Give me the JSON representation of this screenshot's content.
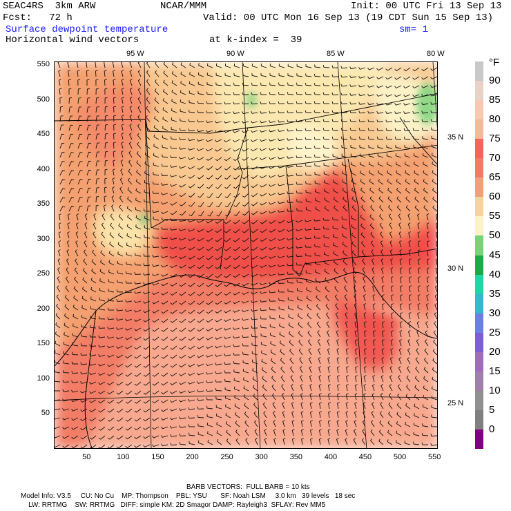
{
  "header": {
    "model": "SEAC4RS  3km ARW",
    "org": "NCAR/MMM",
    "init": "Init: 00 UTC Fri 13 Sep 13",
    "fcst": "Fcst:   72 h",
    "valid": "Valid: 00 UTC Mon 16 Sep 13 (19 CDT Sun 15 Sep 13)",
    "field": "Surface dewpoint temperature",
    "smooth": "sm= 1",
    "vectors": "Horizontal wind vectors",
    "kindex": "at k-index =  39"
  },
  "axes": {
    "lon_labels": [
      "95 W",
      "90 W",
      "85 W",
      "80 W"
    ],
    "lat_labels": [
      "35 N",
      "30 N",
      "25 N"
    ],
    "y_ticks": [
      550,
      500,
      450,
      400,
      350,
      300,
      250,
      200,
      150,
      100,
      50
    ],
    "x_ticks": [
      50,
      100,
      150,
      200,
      250,
      300,
      350,
      400,
      450,
      500,
      550
    ]
  },
  "legend": {
    "unit": "°F",
    "labels": [
      "90",
      "85",
      "80",
      "75",
      "70",
      "65",
      "60",
      "55",
      "50",
      "45",
      "40",
      "35",
      "30",
      "25",
      "20",
      "15",
      "10",
      "5",
      "0"
    ],
    "colors": [
      "#c8c8c8",
      "#e8d2c8",
      "#f7c9b0",
      "#f7b89a",
      "#f3665a",
      "#f27b65",
      "#f4a070",
      "#f8d49a",
      "#fbf2c8",
      "#78d278",
      "#1fa84a",
      "#20d6a5",
      "#38b5d2",
      "#6b7fe6",
      "#7c5fd8",
      "#a06cc0",
      "#a080a8",
      "#909090",
      "#808080",
      "#800080"
    ]
  },
  "footer": {
    "barb": "BARB VECTORS:  FULL BARB = 10 kts",
    "line1": "Model Info: V3.5     CU: No Cu    MP: Thompson    PBL: YSU       SF: Noah LSM     3.0 km   39 levels   18 sec",
    "line2": "    LW: RRTMG    SW: RRTMG   DIFF: simple KM: 2D Smagor DAMP: Rayleigh3  SFLAY: Rev MM5"
  }
}
